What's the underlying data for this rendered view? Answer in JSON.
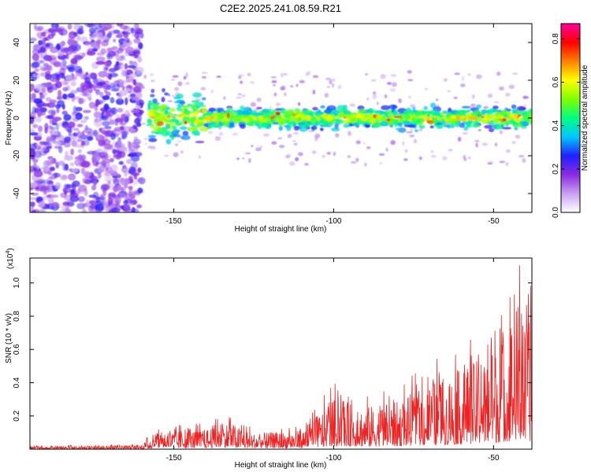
{
  "chart_data": [
    {
      "type": "heatmap",
      "title": "C2E2.2025.241.08.59.R21",
      "xlabel": "Height of straight line (km)",
      "ylabel": "Frequency (Hz)",
      "xlim": [
        -195,
        -38
      ],
      "ylim": [
        -50,
        50
      ],
      "x_ticks": [
        -150,
        -100,
        -50
      ],
      "x_tick_labels": [
        "-150",
        "-100",
        "-50"
      ],
      "y_ticks": [
        -40,
        -20,
        0,
        20,
        40
      ],
      "y_tick_labels": [
        "-40",
        "-20",
        "0",
        "20",
        "40"
      ],
      "noise_region_x": [
        -195,
        -160
      ],
      "signal_band_center_hz": 0,
      "signal_band_halfwidth_hz": 5,
      "colorbar": {
        "label": "Normalized spectral amplitude",
        "range": [
          0.0,
          0.87
        ],
        "ticks": [
          0.0,
          0.2,
          0.4,
          0.6,
          0.8
        ],
        "tick_labels": [
          "0.0",
          "0.2",
          "0.4",
          "0.6",
          "0.8"
        ],
        "colormap": [
          "#ffffff",
          "#c8a0f0",
          "#8a2be2",
          "#2020ff",
          "#00c8ff",
          "#00ff80",
          "#80ff00",
          "#ffff00",
          "#ff8000",
          "#ff0000",
          "#ff00a0"
        ]
      }
    },
    {
      "type": "line",
      "xlabel": "Height of straight line (km)",
      "ylabel": "SNR (10 * v/v)",
      "scale_label": "(x10",
      "scale_exponent": "4",
      "xlim": [
        -195,
        -38
      ],
      "ylim": [
        0,
        1.15
      ],
      "x_ticks": [
        -150,
        -100,
        -50
      ],
      "x_tick_labels": [
        "-150",
        "-100",
        "-50"
      ],
      "y_ticks": [
        0.2,
        0.4,
        0.6,
        0.8,
        1.0
      ],
      "y_tick_labels": [
        "0.2",
        "0.4",
        "0.6",
        "0.8",
        "1.0"
      ],
      "series": [
        {
          "name": "SNR",
          "color": "#ee2222",
          "envelope": {
            "x": [
              -195,
              -160,
              -155,
              -150,
              -140,
              -135,
              -125,
              -110,
              -100,
              -90,
              -80,
              -70,
              -60,
              -50,
              -45,
              -42,
              -40,
              -38
            ],
            "y_max": [
              0.02,
              0.03,
              0.15,
              0.14,
              0.15,
              0.22,
              0.12,
              0.14,
              0.38,
              0.32,
              0.36,
              0.5,
              0.6,
              0.75,
              0.95,
              1.15,
              0.9,
              1.0
            ]
          }
        }
      ]
    }
  ]
}
